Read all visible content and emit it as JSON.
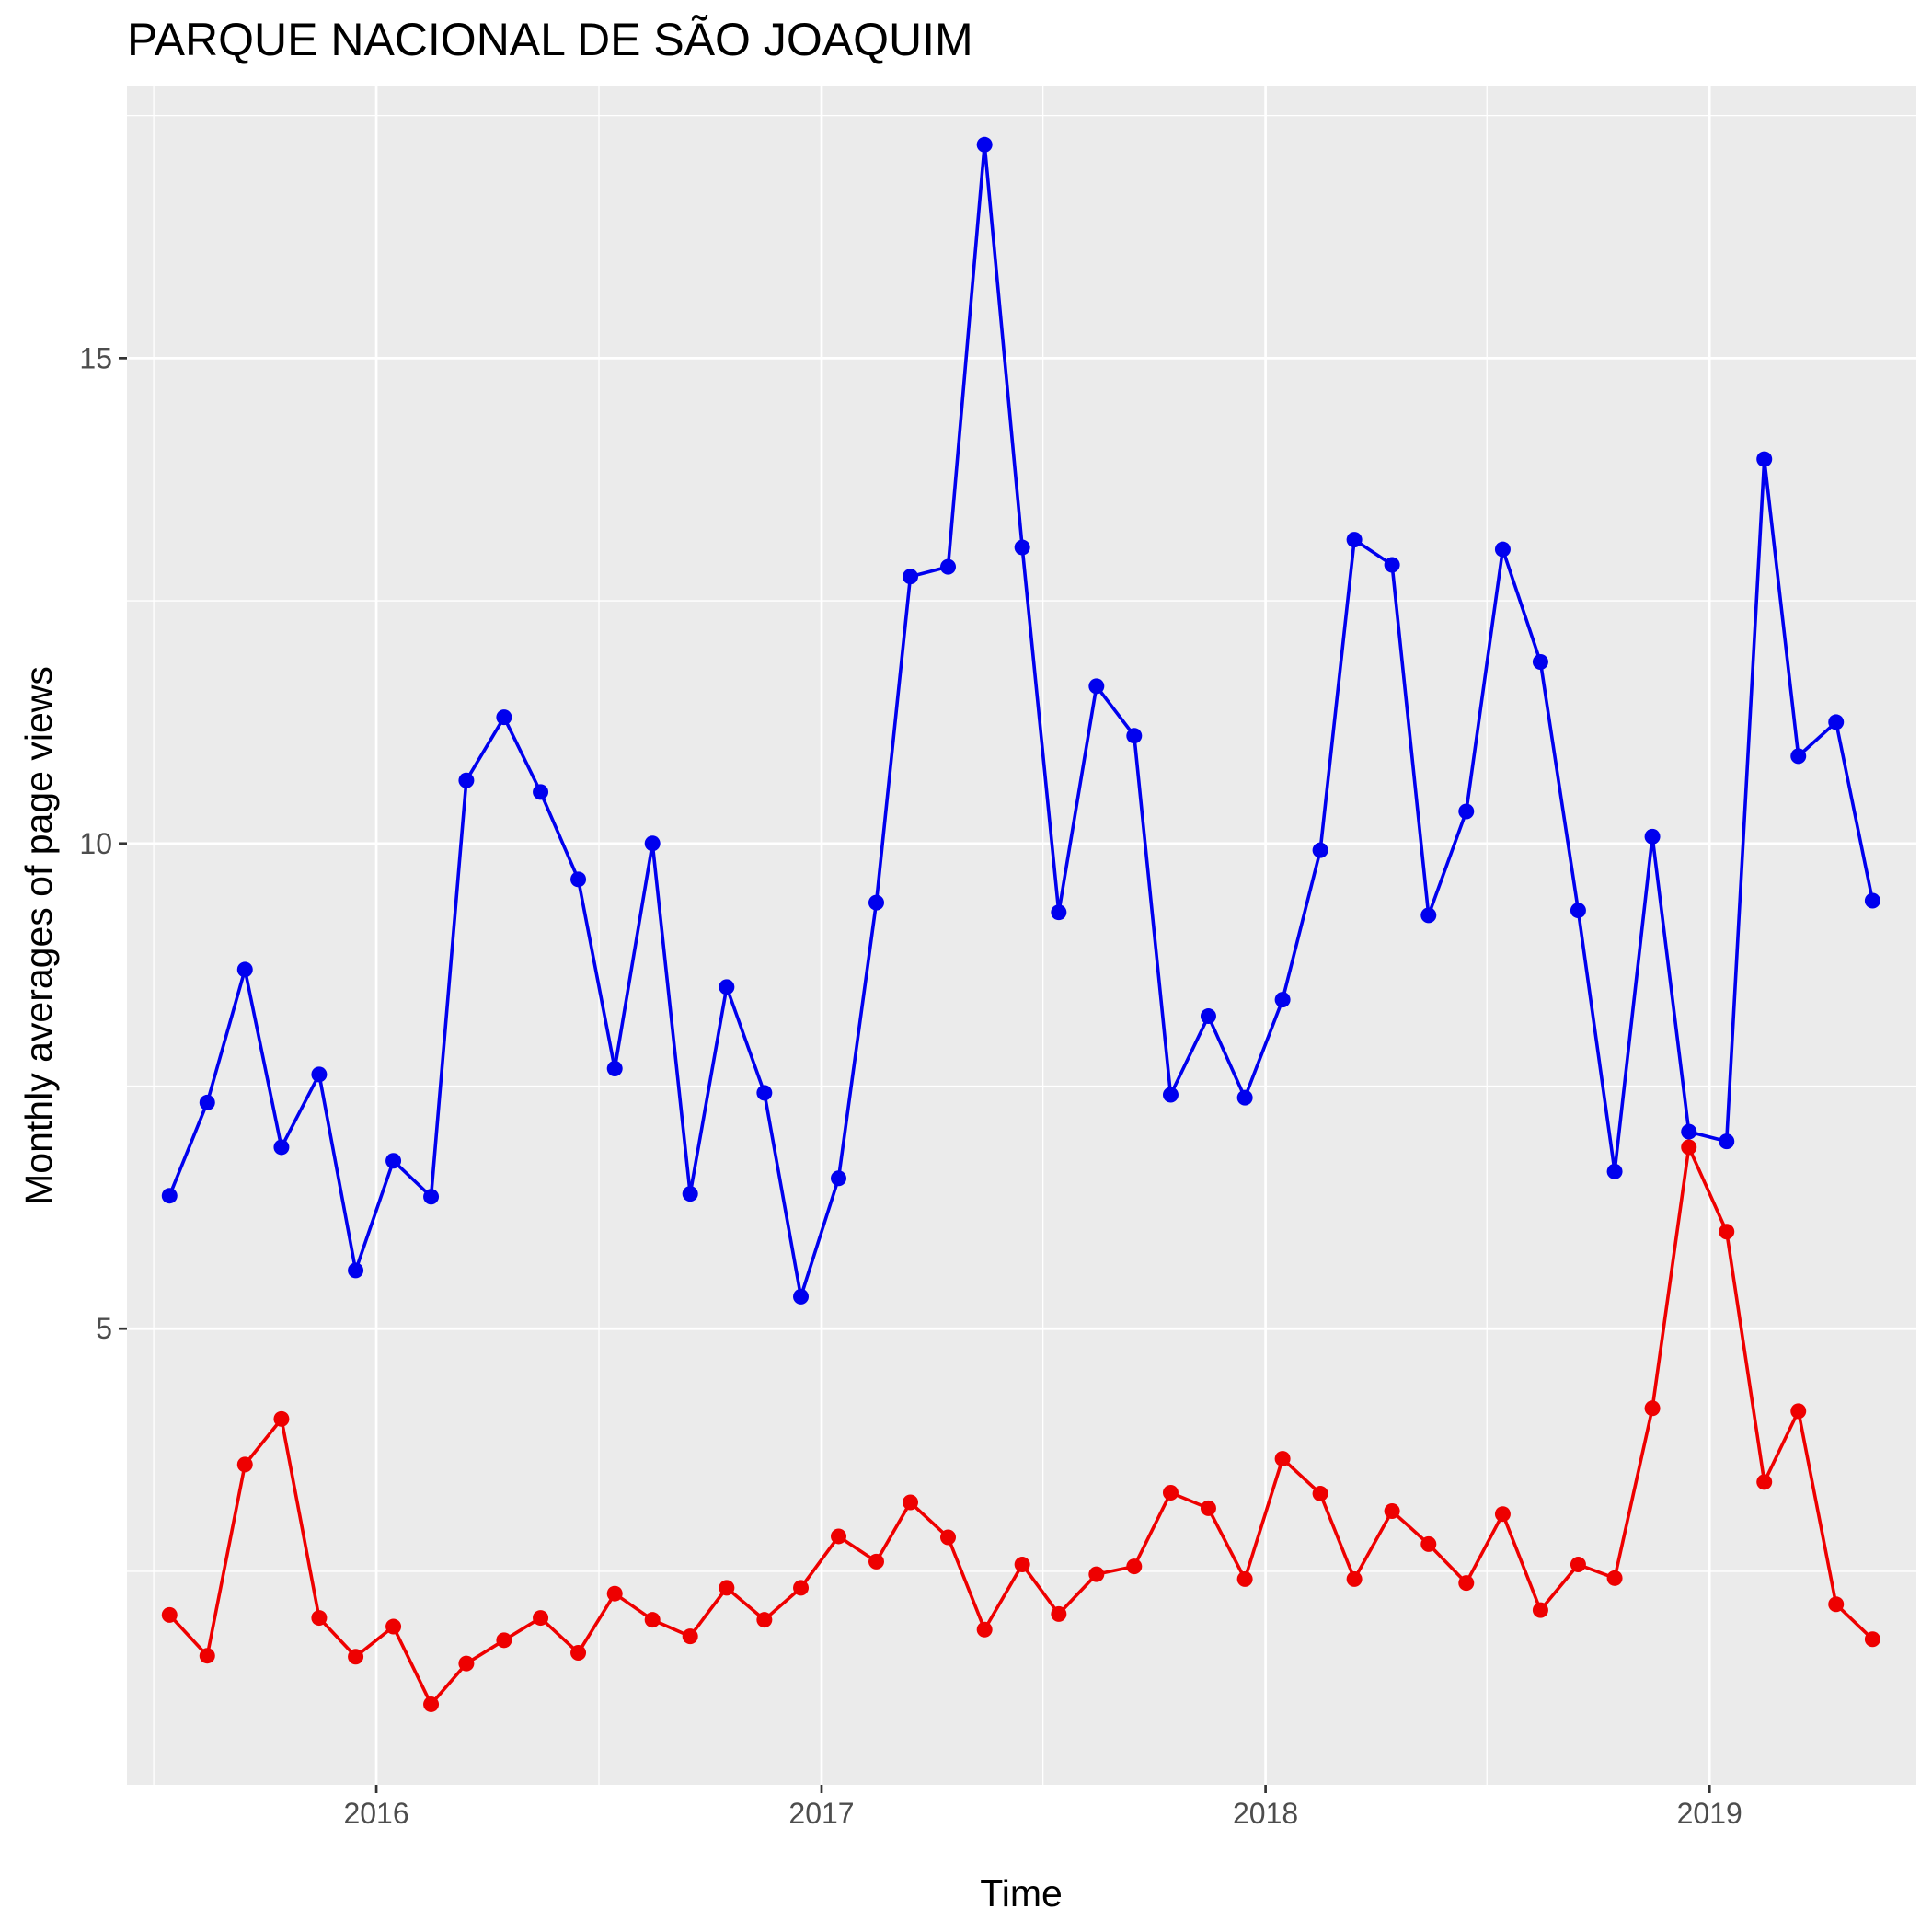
{
  "chart_data": {
    "type": "line",
    "title": "PARQUE NACIONAL DE SÃO JOAQUIM",
    "xlabel": "Time",
    "ylabel": "Monthly averages of page views",
    "x": [
      "2015-07",
      "2015-08",
      "2015-09",
      "2015-10",
      "2015-11",
      "2015-12",
      "2016-01",
      "2016-02",
      "2016-03",
      "2016-04",
      "2016-05",
      "2016-06",
      "2016-07",
      "2016-08",
      "2016-09",
      "2016-10",
      "2016-11",
      "2016-12",
      "2017-01",
      "2017-02",
      "2017-03",
      "2017-04",
      "2017-05",
      "2017-06",
      "2017-07",
      "2017-08",
      "2017-09",
      "2017-10",
      "2017-11",
      "2017-12",
      "2018-01",
      "2018-02",
      "2018-03",
      "2018-04",
      "2018-05",
      "2018-06",
      "2018-07",
      "2018-08",
      "2018-09",
      "2018-10",
      "2018-11",
      "2018-12",
      "2019-01",
      "2019-02",
      "2019-03",
      "2019-04",
      "2019-05"
    ],
    "xlim": [
      "2015-06-10",
      "2019-06-20"
    ],
    "ylim": [
      0.3,
      17.8
    ],
    "x_ticks": [
      {
        "value": "2016-01-01",
        "label": "2016"
      },
      {
        "value": "2017-01-01",
        "label": "2017"
      },
      {
        "value": "2018-01-01",
        "label": "2018"
      },
      {
        "value": "2019-01-01",
        "label": "2019"
      }
    ],
    "y_ticks": [
      {
        "value": 5,
        "label": "5"
      },
      {
        "value": 10,
        "label": "10"
      },
      {
        "value": 15,
        "label": "15"
      }
    ],
    "grid": true,
    "legend": "none",
    "series": [
      {
        "color": "#0000ee",
        "values": [
          6.37,
          7.33,
          8.7,
          6.87,
          7.62,
          5.6,
          6.73,
          6.36,
          10.65,
          11.3,
          10.53,
          9.63,
          7.68,
          10.0,
          6.39,
          8.52,
          7.43,
          5.33,
          6.55,
          9.39,
          12.75,
          12.85,
          17.2,
          13.05,
          9.29,
          11.62,
          11.11,
          7.41,
          8.22,
          7.38,
          8.39,
          9.93,
          13.13,
          12.87,
          9.26,
          10.33,
          13.03,
          11.87,
          9.31,
          6.62,
          10.07,
          7.03,
          6.93,
          13.96,
          10.9,
          11.25,
          9.41
        ]
      },
      {
        "color": "#ee0000",
        "values": [
          2.05,
          1.63,
          3.6,
          4.07,
          2.02,
          1.62,
          1.93,
          1.13,
          1.55,
          1.79,
          2.02,
          1.66,
          2.27,
          2.0,
          1.83,
          2.33,
          2.0,
          2.33,
          2.86,
          2.6,
          3.21,
          2.85,
          1.9,
          2.57,
          2.06,
          2.47,
          2.55,
          3.31,
          3.15,
          2.42,
          3.66,
          3.3,
          2.42,
          3.12,
          2.78,
          2.38,
          3.09,
          2.1,
          2.57,
          2.43,
          4.18,
          6.87,
          6.0,
          3.42,
          4.15,
          2.16,
          1.8
        ]
      }
    ]
  }
}
